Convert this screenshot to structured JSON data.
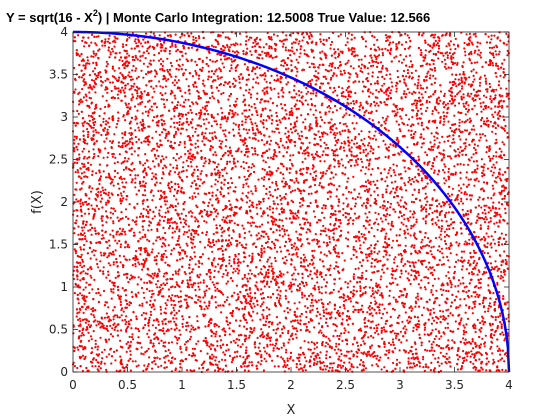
{
  "chart_data": {
    "type": "scatter",
    "title": {
      "part1": "Y = sqrt(16 - X",
      "superscript": "2",
      "part2": ")    |    Monte Carlo Integration: 12.5008    True Value: 12.566"
    },
    "xlabel": "X",
    "ylabel": "f(X)",
    "xlim": [
      0,
      4
    ],
    "ylim": [
      0,
      4
    ],
    "xticks": [
      "0",
      "0.5",
      "1",
      "1.5",
      "2",
      "2.5",
      "3",
      "3.5",
      "4"
    ],
    "yticks": [
      "0",
      "0.5",
      "1",
      "1.5",
      "2",
      "2.5",
      "3",
      "3.5",
      "4"
    ],
    "curve": {
      "function": "sqrt(16 - x^2)",
      "x_range": [
        0,
        4
      ],
      "color": "#0000ff"
    },
    "scatter": {
      "n_points": 10000,
      "distribution": "uniform",
      "x_range": [
        0,
        4
      ],
      "y_range": [
        0,
        4
      ],
      "color": "#ff0000"
    },
    "monte_carlo_estimate": 12.5008,
    "true_value": 12.566,
    "grid": false,
    "box": true
  }
}
